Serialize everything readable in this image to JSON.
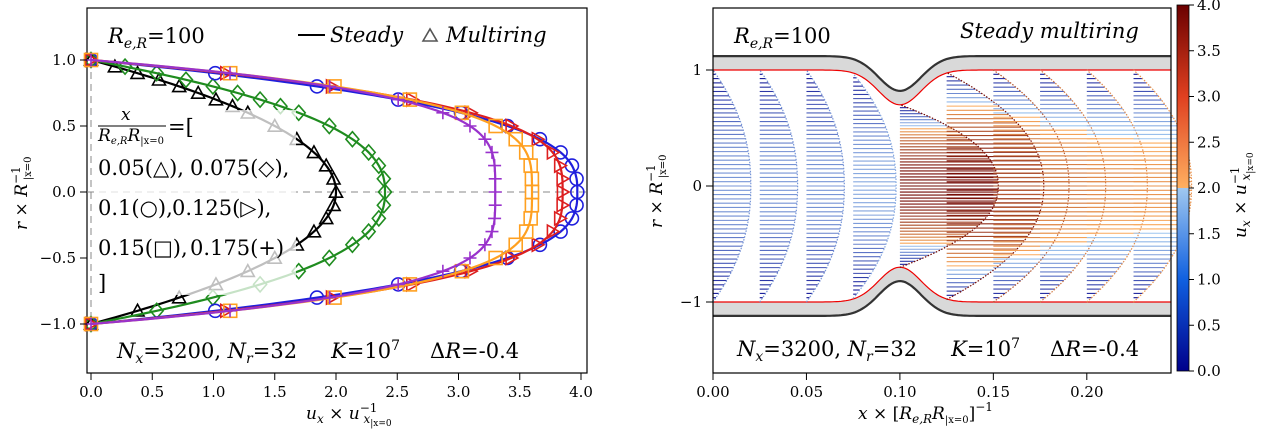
{
  "chart_data": [
    {
      "type": "line",
      "title": "",
      "xlabel": "u_x × u_{x|x=0}^{-1}",
      "ylabel": "r × R_{|x=0}^{-1}",
      "xlim": [
        -0.02,
        4.05
      ],
      "ylim": [
        -1.38,
        1.38
      ],
      "xticks": [
        "0.0",
        "0.5",
        "1.0",
        "1.5",
        "2.0",
        "2.5",
        "3.0",
        "3.5",
        "4.0"
      ],
      "yticks": [
        "−1.0",
        "−0.5",
        "0.0",
        "0.5",
        "1.0"
      ],
      "grid": false,
      "legend_position": "top-right",
      "legend": {
        "steady": "Steady",
        "multiring": "Multiring"
      },
      "annotations": {
        "re": "R_{e,R}=100",
        "bracket_open": "x / (R_{e,R} R_{|x=0}) = [",
        "row1": "0.05(△),",
        "row1b": "0.075(◇),",
        "row2": "0.1(○),",
        "row2b": "0.125(▷),",
        "row3": "0.15(□),",
        "row3b": "0.175(+)",
        "bracket_close": "]",
        "params": "N_x=3200, N_r=32    K=10^7    ΔR=-0.4"
      },
      "series": [
        {
          "name": "0.05",
          "marker": "triangle",
          "color": "#000000",
          "centerline_u": 2.0,
          "points_r": [
            1.0,
            0.95,
            0.9,
            0.85,
            0.8,
            0.75,
            0.7,
            0.65,
            0.6,
            0.5,
            0.4,
            0.3,
            0.2,
            0.1,
            0.0,
            -0.1,
            -0.2,
            -0.3,
            -0.4,
            -0.5,
            -0.6,
            -0.7,
            -0.8,
            -0.9,
            -1.0
          ]
        },
        {
          "name": "0.075",
          "marker": "diamond",
          "color": "#1f8c1f",
          "centerline_u": 2.4,
          "points_r": [
            1.0,
            0.95,
            0.9,
            0.85,
            0.8,
            0.75,
            0.7,
            0.65,
            0.6,
            0.5,
            0.4,
            0.3,
            0.2,
            0.1,
            0.0,
            -0.1,
            -0.2,
            -0.3,
            -0.4,
            -0.5,
            -0.6,
            -0.7,
            -0.8,
            -0.9,
            -1.0
          ]
        },
        {
          "name": "0.1",
          "marker": "circle",
          "color": "#1f1fdd",
          "centerline_u": 3.97,
          "points_r": [
            1.0,
            0.9,
            0.8,
            0.7,
            0.6,
            0.5,
            0.4,
            0.3,
            0.2,
            0.1,
            0.0,
            -0.1,
            -0.2,
            -0.3,
            -0.4,
            -0.5,
            -0.6,
            -0.7,
            -0.8,
            -0.9,
            -1.0
          ]
        },
        {
          "name": "0.125",
          "marker": "tri-right",
          "color": "#dd1f1f",
          "centerline_u": 3.85,
          "points_r": [
            1.0,
            0.9,
            0.8,
            0.7,
            0.6,
            0.5,
            0.4,
            0.3,
            0.2,
            0.1,
            0.0,
            -0.1,
            -0.2,
            -0.3,
            -0.4,
            -0.5,
            -0.6,
            -0.7,
            -0.8,
            -0.9,
            -1.0
          ]
        },
        {
          "name": "0.15",
          "marker": "square",
          "color": "#ffa020",
          "centerline_u": 3.6,
          "points_r": [
            1.0,
            0.9,
            0.8,
            0.7,
            0.6,
            0.5,
            0.4,
            0.3,
            0.2,
            0.1,
            0.0,
            -0.1,
            -0.2,
            -0.3,
            -0.4,
            -0.5,
            -0.6,
            -0.7,
            -0.8,
            -0.9,
            -1.0
          ]
        },
        {
          "name": "0.175",
          "marker": "plus",
          "color": "#9932cc",
          "centerline_u": 3.3,
          "points_r": [
            1.0,
            0.9,
            0.8,
            0.7,
            0.6,
            0.5,
            0.4,
            0.3,
            0.2,
            0.1,
            0.0,
            -0.1,
            -0.2,
            -0.3,
            -0.4,
            -0.5,
            -0.6,
            -0.7,
            -0.8,
            -0.9,
            -1.0
          ]
        }
      ]
    },
    {
      "type": "heatmap",
      "title": "",
      "xlabel": "x × [R_{e,R} R_{|x=0}]^{-1}",
      "ylabel": "r × R_{|x=0}^{-1}",
      "xlim": [
        0.0,
        0.245
      ],
      "ylim": [
        -1.3,
        1.3
      ],
      "xticks": [
        "0.00",
        "0.05",
        "0.10",
        "0.15",
        "0.20"
      ],
      "yticks": [
        "−1",
        "0",
        "1"
      ],
      "grid": false,
      "annotations": {
        "re": "R_{e,R}=100",
        "label": "Steady multiring",
        "params": "N_x=3200, N_r=32    K=10^7    ΔR=-0.4"
      },
      "geometry": {
        "constriction_center_x": 0.1,
        "throat_radius": 0.7,
        "wall_radius": 1.0
      },
      "profile_stations_x": [
        0.0,
        0.025,
        0.05,
        0.075,
        0.1,
        0.125,
        0.15,
        0.175,
        0.2,
        0.225
      ],
      "profile_centerline_u": [
        1.5,
        1.5,
        1.5,
        1.7,
        3.9,
        3.85,
        3.0,
        2.6,
        2.4,
        2.3
      ],
      "colorbar": {
        "label": "u_x × u_{x|x=0}^{-1}",
        "range": [
          0.0,
          4.0
        ],
        "ticks": [
          "0.0",
          "0.5",
          "1.0",
          "1.5",
          "2.0",
          "2.5",
          "3.0",
          "3.5",
          "4.0"
        ]
      }
    }
  ]
}
